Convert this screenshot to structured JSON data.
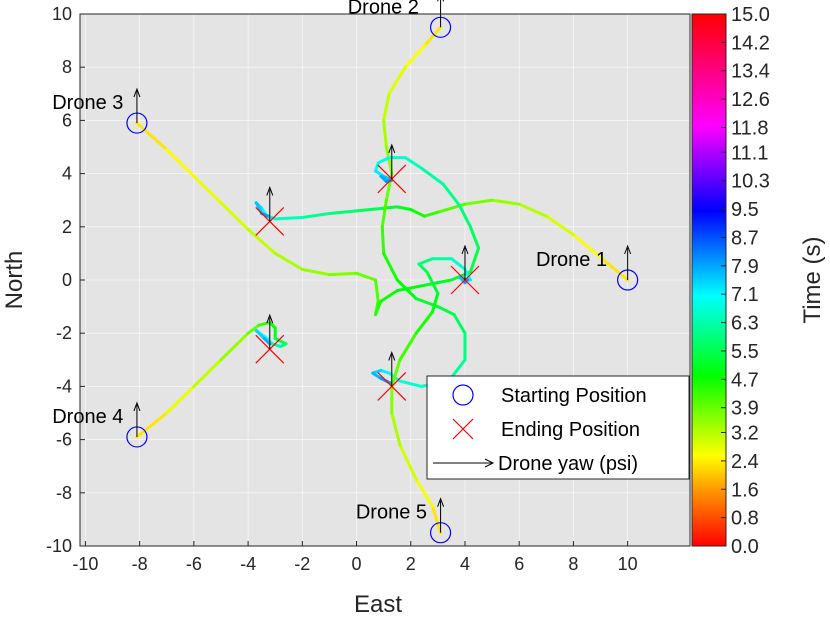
{
  "chart_data": {
    "type": "line",
    "title": "",
    "xlabel": "East",
    "ylabel": "North",
    "xlim": [
      -10.2,
      12.3
    ],
    "ylim": [
      -10,
      10
    ],
    "grid": true,
    "x_ticks": [
      "-10",
      "-8",
      "-6",
      "-4",
      "-2",
      "0",
      "2",
      "4",
      "6",
      "8",
      "10"
    ],
    "y_ticks": [
      "10",
      "8",
      "6",
      "4",
      "2",
      "0",
      "-2",
      "-4",
      "-6",
      "-8",
      "-10"
    ],
    "colorbar": {
      "label": "Time (s)",
      "min": 0,
      "max": 15,
      "ticks": [
        "15.0",
        "14.2",
        "13.4",
        "12.6",
        "11.8",
        "11.1",
        "10.3",
        "9.5",
        "8.7",
        "7.9",
        "7.1",
        "6.3",
        "5.5",
        "4.7",
        "3.9",
        "3.2",
        "2.4",
        "1.6",
        "0.8",
        "0.0"
      ]
    },
    "legend": {
      "position": "bottom-right",
      "entries": [
        {
          "label": "Starting Position",
          "marker": "circle",
          "color": "#0000ff"
        },
        {
          "label": "Ending Position",
          "marker": "x",
          "color": "#ff0000"
        },
        {
          "label": "Drone yaw (psi)",
          "marker": "arrow",
          "color": "#000000"
        }
      ]
    },
    "drones": [
      {
        "name": "Drone 1",
        "start": [
          10,
          0
        ],
        "end": [
          4,
          0
        ],
        "path": [
          [
            10,
            0
          ],
          [
            9,
            0.85
          ],
          [
            8,
            1.7
          ],
          [
            7,
            2.4
          ],
          [
            6,
            2.85
          ],
          [
            5,
            3
          ],
          [
            4,
            2.85
          ],
          [
            3,
            2.55
          ],
          [
            2.5,
            2.4
          ],
          [
            2,
            2.65
          ],
          [
            1.5,
            2.75
          ],
          [
            1,
            2.7
          ],
          [
            0,
            2.6
          ],
          [
            -1,
            2.5
          ],
          [
            -2,
            2.35
          ],
          [
            -3,
            2.3
          ],
          [
            -3.3,
            2.4
          ],
          [
            -3.5,
            2.7
          ]
        ],
        "end_loop": [
          [
            -3.5,
            2.7
          ],
          [
            -3.7,
            2.9
          ],
          [
            -3.5,
            2.5
          ],
          [
            -3.25,
            2.4
          ]
        ]
      },
      {
        "name": "Drone 2",
        "start": [
          3.1,
          9.5
        ],
        "end": [
          1.3,
          3.8
        ],
        "path": [
          [
            3.1,
            9.5
          ],
          [
            2.5,
            8.8
          ],
          [
            1.8,
            8
          ],
          [
            1.2,
            7
          ],
          [
            1,
            6
          ],
          [
            1.1,
            5
          ],
          [
            1.3,
            4
          ],
          [
            1.1,
            3
          ],
          [
            0.95,
            2
          ],
          [
            1,
            1
          ],
          [
            1.5,
            0
          ],
          [
            2.2,
            -0.7
          ],
          [
            3,
            -1
          ],
          [
            3.6,
            -1.3
          ],
          [
            4,
            -2
          ],
          [
            4,
            -3
          ],
          [
            3.4,
            -3.8
          ],
          [
            2.4,
            -4
          ],
          [
            1.6,
            -3.8
          ],
          [
            1.2,
            -3.5
          ],
          [
            0.9,
            -3.4
          ]
        ],
        "end_loop": [
          [
            0.9,
            -3.4
          ],
          [
            0.6,
            -3.5
          ],
          [
            0.9,
            -3.7
          ],
          [
            1.3,
            -3.9
          ]
        ]
      },
      {
        "name": "Drone 3",
        "start": [
          -8.1,
          5.9
        ],
        "end": [
          -3.2,
          2.2
        ],
        "path": [
          [
            -8.1,
            5.9
          ],
          [
            -7,
            4.9
          ],
          [
            -6,
            3.9
          ],
          [
            -5,
            2.9
          ],
          [
            -4,
            1.9
          ],
          [
            -3,
            1
          ],
          [
            -2,
            0.4
          ],
          [
            -1,
            0.2
          ],
          [
            0,
            0.25
          ],
          [
            0.7,
            0
          ],
          [
            0.8,
            -0.8
          ],
          [
            0.7,
            -1.3
          ],
          [
            0.9,
            -0.8
          ],
          [
            1.5,
            -0.4
          ],
          [
            2.5,
            -0.2
          ],
          [
            3.5,
            0
          ],
          [
            4.2,
            0.3
          ],
          [
            4.5,
            1.2
          ],
          [
            4.2,
            2
          ],
          [
            3.8,
            2.8
          ],
          [
            3.2,
            3.6
          ],
          [
            2.4,
            4.2
          ],
          [
            1.8,
            4.6
          ],
          [
            1.2,
            4.6
          ],
          [
            0.8,
            4.4
          ],
          [
            0.7,
            4.1
          ],
          [
            1,
            3.9
          ],
          [
            1.2,
            3.8
          ]
        ],
        "end_loop": [
          [
            1.2,
            3.8
          ],
          [
            0.9,
            3.9
          ],
          [
            1.1,
            3.7
          ],
          [
            1.3,
            3.75
          ]
        ]
      },
      {
        "name": "Drone 4",
        "start": [
          -8.1,
          -5.9
        ],
        "end": [
          -3.2,
          -2.6
        ],
        "path": [
          [
            -8.1,
            -5.9
          ],
          [
            -7,
            -5
          ],
          [
            -6,
            -4
          ],
          [
            -5,
            -3
          ],
          [
            -4,
            -2
          ],
          [
            -3.6,
            -1.7
          ],
          [
            -3.2,
            -1.6
          ],
          [
            -3,
            -1.8
          ],
          [
            -3,
            -2.2
          ],
          [
            -2.6,
            -2.4
          ],
          [
            -2.8,
            -2.5
          ],
          [
            -3.1,
            -2.4
          ],
          [
            -3.3,
            -2.2
          ]
        ],
        "end_loop": [
          [
            -3.3,
            -2.2
          ],
          [
            -3.7,
            -1.9
          ],
          [
            -3.4,
            -2.2
          ],
          [
            -3.2,
            -2.4
          ]
        ]
      },
      {
        "name": "Drone 5",
        "start": [
          3.1,
          -9.5
        ],
        "end": [
          1.3,
          -4
        ],
        "path": [
          [
            3.1,
            -9.5
          ],
          [
            2.8,
            -8.5
          ],
          [
            2.2,
            -7.5
          ],
          [
            1.6,
            -6.2
          ],
          [
            1.3,
            -5
          ],
          [
            1.3,
            -4
          ],
          [
            1.6,
            -3
          ],
          [
            2.2,
            -2
          ],
          [
            2.8,
            -1.2
          ],
          [
            3,
            -0.5
          ],
          [
            2.6,
            0.3
          ],
          [
            2.3,
            0.6
          ],
          [
            2.8,
            0.8
          ],
          [
            3.5,
            0.8
          ],
          [
            4,
            0.4
          ],
          [
            4.2,
            0
          ]
        ],
        "end_loop": [
          [
            4.2,
            0
          ],
          [
            3.8,
            0.1
          ],
          [
            4,
            -0.1
          ],
          [
            4.1,
            0
          ]
        ]
      }
    ]
  }
}
